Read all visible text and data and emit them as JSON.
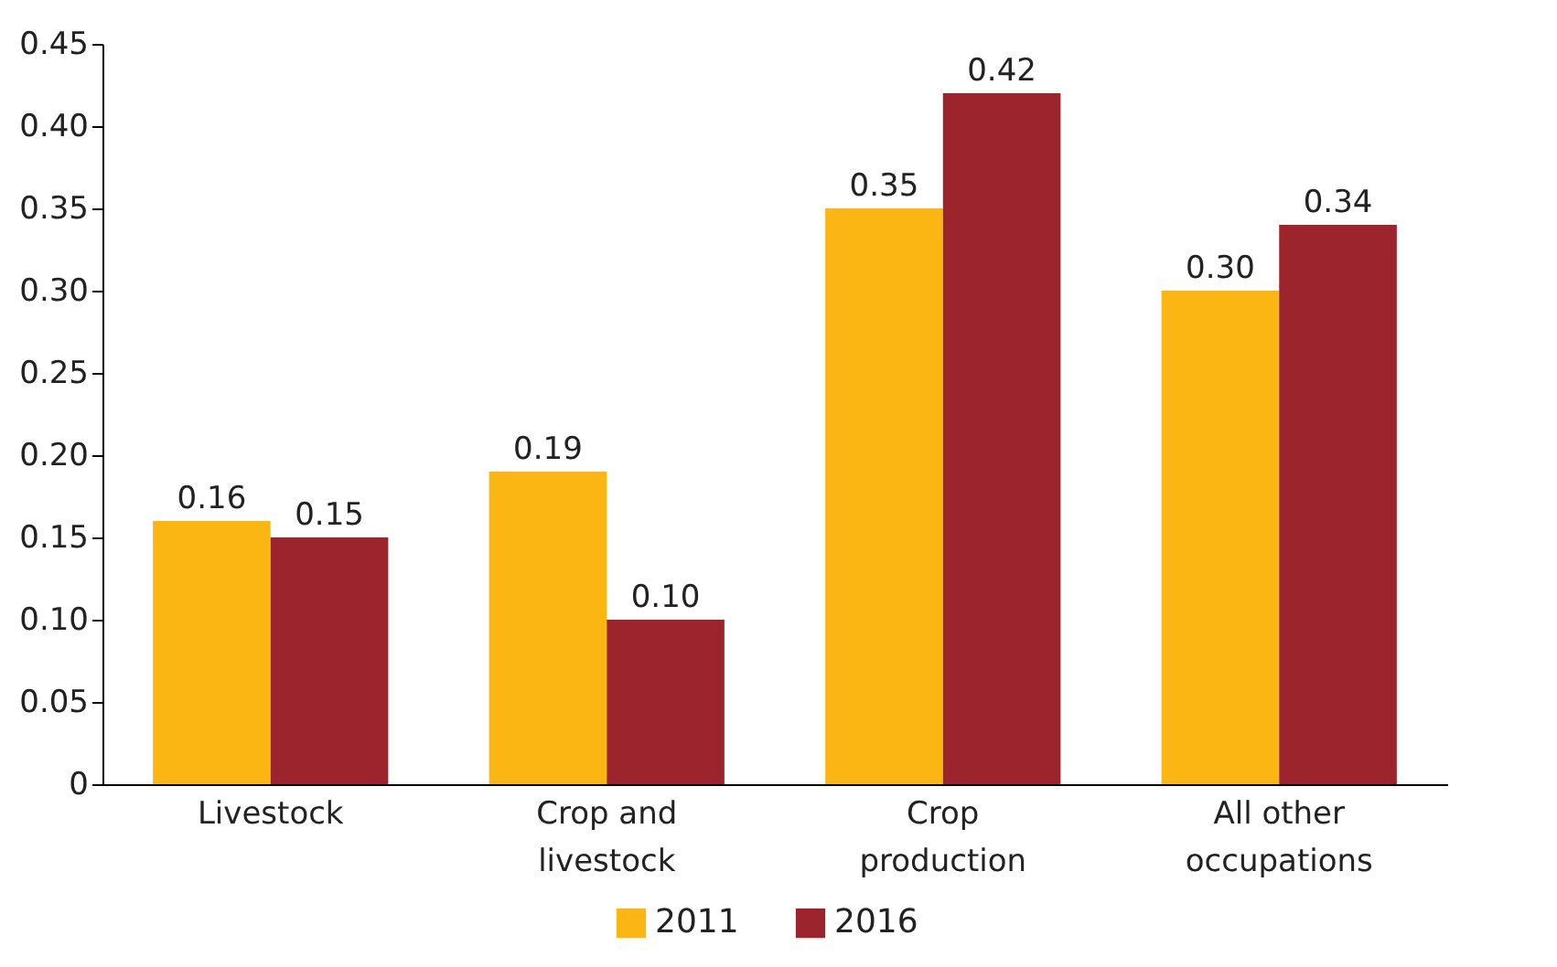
{
  "chart_data": {
    "type": "bar",
    "categories": [
      "Livestock",
      "Crop and\nlivestock",
      "Crop\nproduction",
      "All other\noccupations"
    ],
    "series": [
      {
        "name": "2011",
        "color": "#fbb614",
        "values": [
          0.16,
          0.19,
          0.35,
          0.3
        ],
        "value_labels": [
          "0.16",
          "0.19",
          "0.35",
          "0.30"
        ]
      },
      {
        "name": "2016",
        "color": "#9b242d",
        "values": [
          0.15,
          0.1,
          0.42,
          0.34
        ],
        "value_labels": [
          "0.15",
          "0.10",
          "0.42",
          "0.34"
        ]
      }
    ],
    "ylim": [
      0,
      0.45
    ],
    "yticks": [
      0,
      {
        "value": 0.05,
        "label": "0.05"
      },
      {
        "value": 0.1,
        "label": "0.10"
      },
      {
        "value": 0.15,
        "label": "0.15"
      },
      {
        "value": 0.2,
        "label": "0.20"
      },
      {
        "value": 0.25,
        "label": "0.25"
      },
      {
        "value": 0.3,
        "label": "0.30"
      },
      {
        "value": 0.35,
        "label": "0.35"
      },
      {
        "value": 0.4,
        "label": "0.40"
      },
      {
        "value": 0.45,
        "label": "0.45"
      }
    ],
    "legend": "bottom",
    "grid": false
  }
}
